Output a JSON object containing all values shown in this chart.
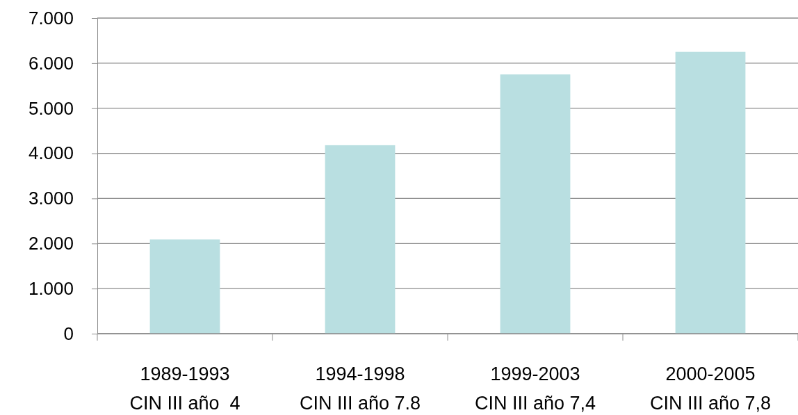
{
  "chart_data": {
    "type": "bar",
    "categories": [
      "1989-1993\nCIN III año  4",
      "1994-1998\nCIN III año 7.8",
      "1999-2003\nCIN III año 7,4",
      "2000-2005\nCIN III año 7,8"
    ],
    "values": [
      2090,
      4180,
      5750,
      6250
    ],
    "color": "#b9dfe1",
    "ylim": [
      0,
      7000
    ],
    "yticks": [
      {
        "value": 0,
        "label": "0"
      },
      {
        "value": 1000,
        "label": "1.000"
      },
      {
        "value": 2000,
        "label": "2.000"
      },
      {
        "value": 3000,
        "label": "3.000"
      },
      {
        "value": 4000,
        "label": "4.000"
      },
      {
        "value": 5000,
        "label": "5.000"
      },
      {
        "value": 6000,
        "label": "6.000"
      },
      {
        "value": 7000,
        "label": "7.000"
      }
    ],
    "grid": true
  }
}
